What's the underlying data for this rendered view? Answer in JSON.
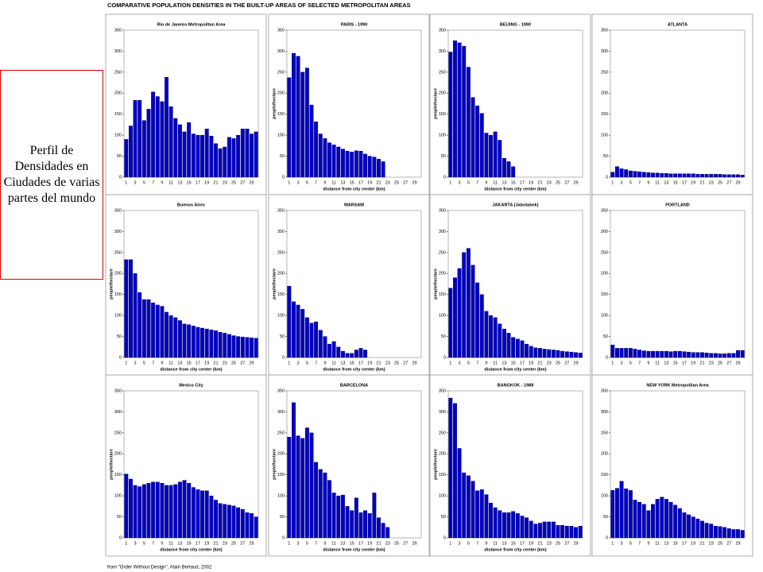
{
  "title": "COMPARATIVE POPULATION DENSITIES IN THE BUILT-UP AREAS OF SELECTED METROPOLITAN AREAS",
  "note": "Perfil de Densidades en Ciudades de varias partes del mundo",
  "source": "from \"Order Without Design\", Alain Bertaud, 2002",
  "chart_data": [
    {
      "type": "bar",
      "title": "Rio de Janeiro  Metropolitan Area",
      "color": "#0000cc",
      "categories": [
        1,
        null,
        3,
        null,
        5,
        null,
        7,
        null,
        9,
        null,
        11,
        null,
        13,
        null,
        15,
        null,
        17,
        null,
        19,
        null,
        21,
        null,
        23,
        null,
        25,
        null,
        27,
        null,
        29,
        null
      ],
      "values": [
        90,
        122,
        183,
        183,
        135,
        162,
        203,
        192,
        180,
        238,
        168,
        140,
        125,
        108,
        130,
        103,
        100,
        100,
        115,
        98,
        80,
        68,
        72,
        95,
        92,
        100,
        115,
        115,
        103,
        108
      ],
      "ylim": [
        0,
        350
      ],
      "yticks": [
        0,
        50,
        100,
        150,
        200,
        250,
        300,
        350
      ]
    },
    {
      "type": "bar",
      "title": "PARIS - 1990",
      "ylabel": "people/hectare",
      "xlabel": "distance from city center (km)",
      "color": "#0000cc",
      "categories": [
        1,
        null,
        3,
        null,
        5,
        null,
        7,
        null,
        9,
        null,
        11,
        null,
        13,
        null,
        15,
        null,
        17,
        null,
        19,
        null,
        21,
        null,
        23,
        null,
        25,
        null,
        27,
        null,
        29,
        null
      ],
      "values": [
        237,
        295,
        288,
        250,
        260,
        172,
        132,
        103,
        92,
        82,
        77,
        72,
        67,
        62,
        60,
        63,
        62,
        55,
        50,
        48,
        43,
        37,
        0,
        0,
        0,
        0,
        0,
        0,
        0,
        0
      ],
      "ylim": [
        0,
        350
      ],
      "yticks": [
        0,
        50,
        100,
        150,
        200,
        250,
        300,
        350
      ]
    },
    {
      "type": "bar",
      "title": "BEIJING - 1990",
      "ylabel": "people/hectare",
      "xlabel": "distance from city center (km)",
      "color": "#0000cc",
      "categories": [
        1,
        null,
        3,
        null,
        5,
        null,
        7,
        null,
        9,
        null,
        11,
        null,
        13,
        null,
        15,
        null,
        17,
        null,
        19,
        null,
        21,
        null,
        23,
        null,
        25,
        null,
        27,
        null,
        29,
        null
      ],
      "values": [
        298,
        325,
        320,
        312,
        262,
        190,
        170,
        152,
        105,
        100,
        108,
        88,
        45,
        37,
        25,
        0,
        0,
        0,
        0,
        0,
        0,
        0,
        0,
        0,
        0,
        0,
        0,
        0,
        0,
        0
      ],
      "ylim": [
        0,
        350
      ],
      "yticks": [
        0,
        50,
        100,
        150,
        200,
        250,
        300,
        350
      ]
    },
    {
      "type": "bar",
      "title": "ATLANTA",
      "color": "#0000cc",
      "categories": [
        1,
        null,
        3,
        null,
        5,
        null,
        7,
        null,
        9,
        null,
        11,
        null,
        13,
        null,
        15,
        null,
        17,
        null,
        19,
        null,
        21,
        null,
        23,
        null,
        25,
        null,
        27,
        null,
        29,
        null
      ],
      "values": [
        12,
        25,
        20,
        18,
        15,
        14,
        13,
        12,
        11,
        10,
        10,
        9,
        9,
        8,
        8,
        8,
        8,
        8,
        8,
        7,
        7,
        7,
        7,
        7,
        7,
        6,
        6,
        6,
        6,
        5
      ],
      "ylim": [
        0,
        350
      ],
      "yticks": [
        0,
        50,
        100,
        150,
        200,
        250,
        300,
        350
      ]
    },
    {
      "type": "bar",
      "title": "Buenos Aires",
      "ylabel": "people/hectare",
      "xlabel": "distance from city center (km)",
      "color": "#0000cc",
      "categories": [
        1,
        null,
        3,
        null,
        5,
        null,
        7,
        null,
        9,
        null,
        11,
        null,
        13,
        null,
        15,
        null,
        17,
        null,
        19,
        null,
        21,
        null,
        23,
        null,
        25,
        null,
        27,
        null,
        29,
        null
      ],
      "values": [
        233,
        233,
        200,
        155,
        138,
        138,
        130,
        125,
        122,
        108,
        100,
        95,
        88,
        80,
        78,
        75,
        72,
        70,
        68,
        66,
        64,
        60,
        58,
        55,
        52,
        50,
        49,
        48,
        47,
        46
      ],
      "ylim": [
        0,
        350
      ],
      "yticks": [
        0,
        50,
        100,
        150,
        200,
        250,
        300,
        350
      ]
    },
    {
      "type": "bar",
      "title": "WARSAW",
      "ylabel": "people/hectare",
      "xlabel": "distance from city center (km)",
      "color": "#0000cc",
      "categories": [
        1,
        null,
        3,
        null,
        5,
        null,
        7,
        null,
        9,
        null,
        11,
        null,
        13,
        null,
        15,
        null,
        17,
        null,
        19,
        null,
        21,
        null,
        23,
        null,
        25,
        null,
        27,
        null,
        29,
        null
      ],
      "values": [
        170,
        133,
        125,
        115,
        95,
        82,
        85,
        65,
        50,
        32,
        38,
        25,
        15,
        10,
        10,
        18,
        22,
        18,
        0,
        0,
        0,
        0,
        0,
        0,
        0,
        0,
        0,
        0,
        0,
        0
      ],
      "ylim": [
        0,
        350
      ],
      "yticks": [
        0,
        50,
        100,
        150,
        200,
        250,
        300,
        350
      ]
    },
    {
      "type": "bar",
      "title": "JAKARTA (Jabotabek)",
      "ylabel": "people/hectare",
      "xlabel": "distance from city center (km)",
      "color": "#0000cc",
      "categories": [
        1,
        null,
        3,
        null,
        5,
        null,
        7,
        null,
        9,
        null,
        11,
        null,
        13,
        null,
        15,
        null,
        17,
        null,
        19,
        null,
        21,
        null,
        23,
        null,
        25,
        null,
        27,
        null,
        29,
        null
      ],
      "values": [
        165,
        190,
        212,
        250,
        260,
        220,
        178,
        150,
        110,
        100,
        95,
        80,
        68,
        58,
        48,
        44,
        40,
        32,
        27,
        23,
        22,
        20,
        19,
        18,
        17,
        15,
        14,
        13,
        12,
        11
      ],
      "ylim": [
        0,
        350
      ],
      "yticks": [
        0,
        50,
        100,
        150,
        200,
        250,
        300,
        350
      ]
    },
    {
      "type": "bar",
      "title": "PORTLAND",
      "color": "#0000cc",
      "categories": [
        1,
        null,
        3,
        null,
        5,
        null,
        7,
        null,
        9,
        null,
        11,
        null,
        13,
        null,
        15,
        null,
        17,
        null,
        19,
        null,
        21,
        null,
        23,
        null,
        25,
        null,
        27,
        null,
        29,
        null
      ],
      "values": [
        30,
        22,
        22,
        22,
        22,
        20,
        18,
        16,
        15,
        15,
        15,
        15,
        15,
        14,
        15,
        15,
        14,
        13,
        12,
        12,
        12,
        11,
        10,
        10,
        9,
        9,
        10,
        10,
        17,
        17
      ],
      "ylim": [
        0,
        350
      ],
      "yticks": [
        0,
        50,
        100,
        150,
        200,
        250,
        300,
        350
      ]
    },
    {
      "type": "bar",
      "title": "Mexico City",
      "ylabel": "people/hectare",
      "xlabel": "distance from city center (km)",
      "color": "#0000cc",
      "categories": [
        1,
        null,
        3,
        null,
        5,
        null,
        7,
        null,
        9,
        null,
        11,
        null,
        13,
        null,
        15,
        null,
        17,
        null,
        19,
        null,
        21,
        null,
        23,
        null,
        25,
        null,
        27,
        null,
        29,
        null
      ],
      "values": [
        152,
        140,
        125,
        122,
        127,
        130,
        133,
        133,
        130,
        125,
        125,
        127,
        133,
        137,
        130,
        120,
        115,
        112,
        112,
        100,
        90,
        82,
        80,
        78,
        76,
        72,
        68,
        60,
        58,
        50
      ],
      "ylim": [
        0,
        350
      ],
      "yticks": [
        0,
        50,
        100,
        150,
        200,
        250,
        300,
        350
      ]
    },
    {
      "type": "bar",
      "title": "BARCELONA",
      "ylabel": "people/hectare",
      "xlabel": "distance from city center (km)",
      "color": "#0000cc",
      "categories": [
        1,
        null,
        3,
        null,
        5,
        null,
        7,
        null,
        9,
        null,
        11,
        null,
        13,
        null,
        15,
        null,
        17,
        null,
        19,
        null,
        21,
        null,
        23,
        null,
        25,
        null,
        27,
        null,
        29,
        null
      ],
      "values": [
        240,
        322,
        243,
        237,
        262,
        250,
        180,
        163,
        155,
        137,
        107,
        100,
        102,
        75,
        65,
        95,
        60,
        65,
        58,
        107,
        48,
        35,
        25,
        0,
        0,
        0,
        0,
        0,
        0,
        0
      ],
      "ylim": [
        0,
        350
      ],
      "yticks": [
        0,
        50,
        100,
        150,
        200,
        250,
        300,
        350
      ]
    },
    {
      "type": "bar",
      "title": "BANGKOK - 1988",
      "ylabel": "people/hectare",
      "xlabel": "distance from city center (km)",
      "color": "#0000cc",
      "categories": [
        1,
        null,
        3,
        null,
        5,
        null,
        7,
        null,
        9,
        null,
        11,
        null,
        13,
        null,
        15,
        null,
        17,
        null,
        19,
        null,
        21,
        null,
        23,
        null,
        25,
        null,
        27,
        null,
        29,
        null
      ],
      "values": [
        333,
        320,
        213,
        155,
        148,
        135,
        112,
        115,
        103,
        83,
        72,
        65,
        60,
        60,
        63,
        58,
        52,
        48,
        40,
        33,
        35,
        38,
        38,
        38,
        30,
        30,
        28,
        28,
        25,
        28
      ],
      "ylim": [
        0,
        350
      ],
      "yticks": [
        0,
        50,
        100,
        150,
        200,
        250,
        300,
        350
      ]
    },
    {
      "type": "bar",
      "title": "NEW YORK Metropolitan Area",
      "color": "#0000cc",
      "categories": [
        1,
        null,
        3,
        null,
        5,
        null,
        7,
        null,
        9,
        null,
        11,
        null,
        13,
        null,
        15,
        null,
        17,
        null,
        19,
        null,
        21,
        null,
        23,
        null,
        25,
        null,
        27,
        null,
        29,
        null
      ],
      "values": [
        113,
        118,
        135,
        117,
        113,
        90,
        85,
        80,
        65,
        80,
        92,
        97,
        92,
        85,
        78,
        70,
        60,
        55,
        50,
        45,
        40,
        35,
        33,
        28,
        27,
        25,
        22,
        20,
        20,
        18
      ],
      "ylim": [
        0,
        350
      ],
      "yticks": [
        0,
        50,
        100,
        150,
        200,
        250,
        300,
        350
      ]
    }
  ]
}
